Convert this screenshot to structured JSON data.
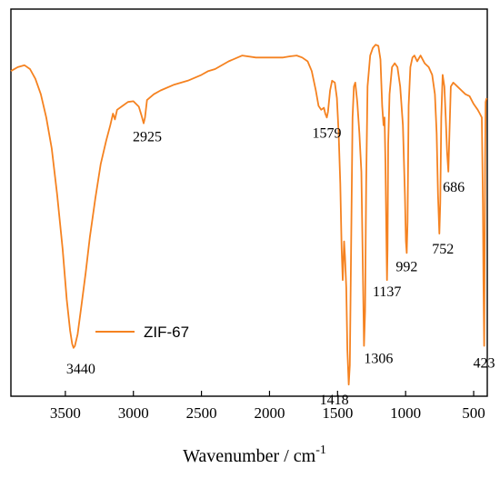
{
  "chart_data": {
    "type": "line",
    "xlabel": "Wavenumber / cm",
    "xlabel_superscript": "-1",
    "xlim": [
      3900,
      400
    ],
    "x_reversed": true,
    "ylim": [
      0,
      100
    ],
    "y_axis_ticks_shown": false,
    "xticks": [
      3500,
      3000,
      2500,
      2000,
      1500,
      1000,
      500
    ],
    "xtick_labels": [
      "3500",
      "3000",
      "2500",
      "2000",
      "1500",
      "1000",
      "500"
    ],
    "legend": {
      "position": "middle-left",
      "entries": [
        "ZIF-67"
      ]
    },
    "series": [
      {
        "name": "ZIF-67",
        "color": "#F58220",
        "points": [
          [
            3900,
            84
          ],
          [
            3850,
            85
          ],
          [
            3800,
            85.5
          ],
          [
            3760,
            84.5
          ],
          [
            3720,
            82
          ],
          [
            3680,
            78
          ],
          [
            3640,
            72
          ],
          [
            3600,
            64
          ],
          [
            3560,
            52
          ],
          [
            3520,
            38
          ],
          [
            3490,
            25
          ],
          [
            3465,
            17
          ],
          [
            3450,
            13.5
          ],
          [
            3440,
            12.5
          ],
          [
            3430,
            13
          ],
          [
            3410,
            16
          ],
          [
            3380,
            24
          ],
          [
            3350,
            32
          ],
          [
            3320,
            41
          ],
          [
            3280,
            51
          ],
          [
            3240,
            60
          ],
          [
            3200,
            66
          ],
          [
            3170,
            70
          ],
          [
            3150,
            73
          ],
          [
            3136,
            71.5
          ],
          [
            3120,
            74
          ],
          [
            3080,
            75
          ],
          [
            3040,
            76
          ],
          [
            3000,
            76.2
          ],
          [
            2960,
            74.8
          ],
          [
            2940,
            72.5
          ],
          [
            2925,
            70.5
          ],
          [
            2915,
            72
          ],
          [
            2900,
            76.5
          ],
          [
            2850,
            78
          ],
          [
            2800,
            79
          ],
          [
            2700,
            80.5
          ],
          [
            2600,
            81.5
          ],
          [
            2500,
            83
          ],
          [
            2450,
            84
          ],
          [
            2400,
            84.5
          ],
          [
            2300,
            86.5
          ],
          [
            2200,
            88
          ],
          [
            2100,
            87.5
          ],
          [
            2000,
            87.5
          ],
          [
            1900,
            87.5
          ],
          [
            1850,
            87.8
          ],
          [
            1800,
            88
          ],
          [
            1760,
            87.5
          ],
          [
            1720,
            86.5
          ],
          [
            1690,
            84
          ],
          [
            1660,
            79
          ],
          [
            1640,
            75
          ],
          [
            1620,
            74
          ],
          [
            1600,
            74.5
          ],
          [
            1590,
            73
          ],
          [
            1579,
            72
          ],
          [
            1570,
            73.5
          ],
          [
            1555,
            79
          ],
          [
            1540,
            81.5
          ],
          [
            1520,
            81
          ],
          [
            1505,
            77
          ],
          [
            1492,
            68
          ],
          [
            1480,
            55
          ],
          [
            1470,
            38
          ],
          [
            1462,
            30
          ],
          [
            1452,
            40
          ],
          [
            1445,
            36
          ],
          [
            1436,
            28
          ],
          [
            1428,
            12
          ],
          [
            1418,
            3
          ],
          [
            1410,
            8
          ],
          [
            1400,
            40
          ],
          [
            1390,
            72
          ],
          [
            1380,
            80
          ],
          [
            1370,
            81
          ],
          [
            1355,
            76
          ],
          [
            1340,
            68
          ],
          [
            1325,
            58
          ],
          [
            1315,
            35
          ],
          [
            1306,
            13
          ],
          [
            1298,
            22
          ],
          [
            1290,
            55
          ],
          [
            1280,
            80
          ],
          [
            1260,
            88
          ],
          [
            1240,
            90
          ],
          [
            1220,
            90.8
          ],
          [
            1200,
            90.5
          ],
          [
            1185,
            87
          ],
          [
            1172,
            75
          ],
          [
            1162,
            70
          ],
          [
            1155,
            72
          ],
          [
            1148,
            60
          ],
          [
            1140,
            38
          ],
          [
            1137,
            30
          ],
          [
            1133,
            38
          ],
          [
            1128,
            65
          ],
          [
            1118,
            78
          ],
          [
            1100,
            85
          ],
          [
            1080,
            86
          ],
          [
            1060,
            85
          ],
          [
            1040,
            80
          ],
          [
            1020,
            70
          ],
          [
            1005,
            52
          ],
          [
            998,
            40
          ],
          [
            992,
            37
          ],
          [
            986,
            45
          ],
          [
            978,
            75
          ],
          [
            965,
            85
          ],
          [
            950,
            87.5
          ],
          [
            935,
            88
          ],
          [
            915,
            86.5
          ],
          [
            890,
            88
          ],
          [
            860,
            86
          ],
          [
            830,
            85
          ],
          [
            805,
            83
          ],
          [
            785,
            78
          ],
          [
            772,
            68
          ],
          [
            762,
            52
          ],
          [
            752,
            42
          ],
          [
            745,
            50
          ],
          [
            738,
            72
          ],
          [
            728,
            83
          ],
          [
            715,
            80
          ],
          [
            705,
            72
          ],
          [
            695,
            63
          ],
          [
            686,
            58
          ],
          [
            678,
            68
          ],
          [
            668,
            80
          ],
          [
            650,
            81
          ],
          [
            620,
            80
          ],
          [
            590,
            79
          ],
          [
            560,
            78
          ],
          [
            530,
            77.5
          ],
          [
            500,
            75.5
          ],
          [
            470,
            74
          ],
          [
            455,
            73
          ],
          [
            440,
            72
          ],
          [
            432,
            50
          ],
          [
            428,
            30
          ],
          [
            423,
            13
          ],
          [
            420,
            30
          ],
          [
            416,
            60
          ],
          [
            412,
            76
          ],
          [
            405,
            77
          ]
        ]
      }
    ],
    "annotations": [
      {
        "text": "3440",
        "x": 3440,
        "y": 12.5
      },
      {
        "text": "2925",
        "x": 2925,
        "y": 70.5
      },
      {
        "text": "1579",
        "x": 1579,
        "y": 72
      },
      {
        "text": "1418",
        "x": 1418,
        "y": 3
      },
      {
        "text": "1306",
        "x": 1306,
        "y": 13
      },
      {
        "text": "1137",
        "x": 1137,
        "y": 30
      },
      {
        "text": "992",
        "x": 992,
        "y": 37
      },
      {
        "text": "752",
        "x": 752,
        "y": 42
      },
      {
        "text": "686",
        "x": 686,
        "y": 58
      },
      {
        "text": "423",
        "x": 423,
        "y": 13
      }
    ]
  }
}
